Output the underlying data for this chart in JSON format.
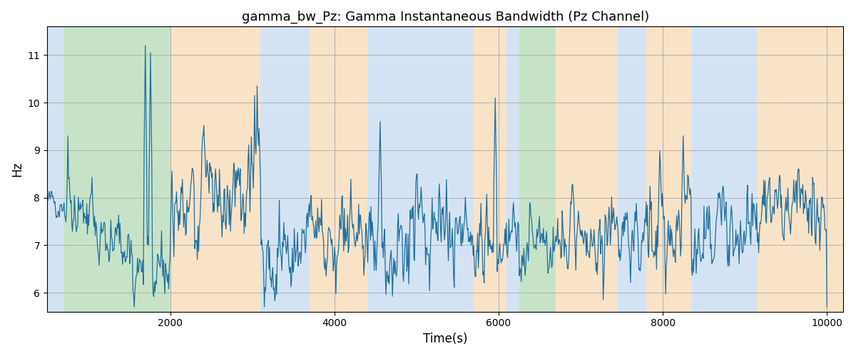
{
  "title": "gamma_bw_Pz: Gamma Instantaneous Bandwidth (Pz Channel)",
  "xlabel": "Time(s)",
  "ylabel": "Hz",
  "xlim": [
    500,
    10200
  ],
  "ylim": [
    5.6,
    11.6
  ],
  "yticks": [
    6,
    7,
    8,
    9,
    10,
    11
  ],
  "xticks": [
    2000,
    4000,
    6000,
    8000,
    10000
  ],
  "line_color": "#2070a0",
  "line_width": 0.9,
  "background_color": "#ffffff",
  "grid_color": "#b0b0b0",
  "bands": [
    {
      "xmin": 500,
      "xmax": 700,
      "color": "#aac8e8",
      "alpha": 0.5
    },
    {
      "xmin": 700,
      "xmax": 2000,
      "color": "#90c890",
      "alpha": 0.5
    },
    {
      "xmin": 2000,
      "xmax": 3100,
      "color": "#f5c890",
      "alpha": 0.5
    },
    {
      "xmin": 3100,
      "xmax": 3700,
      "color": "#aac8e8",
      "alpha": 0.5
    },
    {
      "xmin": 3700,
      "xmax": 4400,
      "color": "#f5c890",
      "alpha": 0.5
    },
    {
      "xmin": 4400,
      "xmax": 5700,
      "color": "#aac8e8",
      "alpha": 0.5
    },
    {
      "xmin": 5700,
      "xmax": 6100,
      "color": "#f5c890",
      "alpha": 0.5
    },
    {
      "xmin": 6100,
      "xmax": 6250,
      "color": "#aac8e8",
      "alpha": 0.5
    },
    {
      "xmin": 6250,
      "xmax": 6700,
      "color": "#90c890",
      "alpha": 0.5
    },
    {
      "xmin": 6700,
      "xmax": 7450,
      "color": "#f5c890",
      "alpha": 0.5
    },
    {
      "xmin": 7450,
      "xmax": 7800,
      "color": "#aac8e8",
      "alpha": 0.5
    },
    {
      "xmin": 7800,
      "xmax": 8350,
      "color": "#f5c890",
      "alpha": 0.5
    },
    {
      "xmin": 8350,
      "xmax": 9150,
      "color": "#aac8e8",
      "alpha": 0.5
    },
    {
      "xmin": 9150,
      "xmax": 10200,
      "color": "#f5c890",
      "alpha": 0.5
    }
  ],
  "seed": 42,
  "n_points": 1200
}
